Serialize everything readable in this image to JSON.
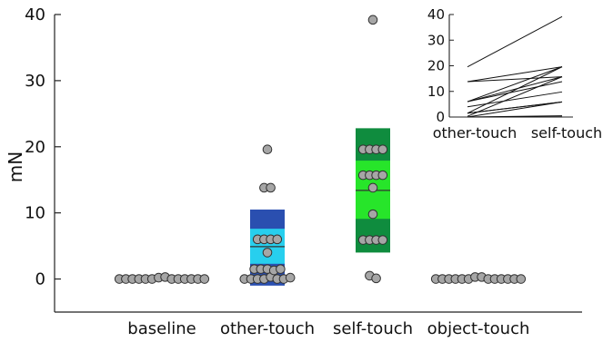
{
  "chart_data": [
    {
      "type": "box-scatter",
      "ylabel": "mN",
      "ylim": [
        -5,
        40
      ],
      "yticks": [
        0,
        10,
        20,
        30,
        40
      ],
      "categories": [
        "baseline",
        "other-touch",
        "self-touch",
        "object-touch"
      ],
      "colors": {
        "other-touch": {
          "outer": "#2a4fb0",
          "inner": "#27cfee",
          "median": "#333333"
        },
        "self-touch": {
          "outer": "#0f8c3e",
          "inner": "#27e52a",
          "median": "#333333"
        },
        "points": "#a6a6a6",
        "point_edge": "#333333"
      },
      "boxes": [
        {
          "category": "other-touch",
          "outer": [
            -1,
            10.5
          ],
          "inner": [
            2.3,
            7.6
          ],
          "median": 4.9
        },
        {
          "category": "self-touch",
          "outer": [
            4,
            22.8
          ],
          "inner": [
            9.1,
            17.9
          ],
          "median": 13.4
        }
      ],
      "points": [
        {
          "category": "baseline",
          "values": [
            0,
            0,
            0,
            0,
            0,
            0,
            0.2,
            0.3,
            0,
            0,
            0,
            0,
            0,
            0
          ]
        },
        {
          "category": "other-touch",
          "values": [
            0,
            0,
            0,
            0,
            0.3,
            0,
            0,
            0.2,
            1.5,
            1.5,
            1.5,
            1.3,
            1.5,
            4,
            6,
            6,
            6,
            6,
            13.8,
            13.8,
            19.6
          ]
        },
        {
          "category": "self-touch",
          "values": [
            19.6,
            19.6,
            19.6,
            19.6,
            15.7,
            15.7,
            15.7,
            15.7,
            13.8,
            9.8,
            5.9,
            5.9,
            5.9,
            5.9,
            0.5,
            0.1,
            39.2
          ]
        },
        {
          "category": "object-touch",
          "values": [
            0,
            0,
            0,
            0,
            0,
            0,
            0.3,
            0.3,
            0,
            0,
            0,
            0,
            0,
            0
          ]
        }
      ]
    },
    {
      "type": "line",
      "inset": true,
      "categories": [
        "other-touch",
        "self-touch"
      ],
      "ylim": [
        0,
        40
      ],
      "yticks": [
        0,
        10,
        20,
        30,
        40
      ],
      "pairs": [
        [
          19.6,
          39.2
        ],
        [
          13.8,
          19.6
        ],
        [
          13.8,
          15.7
        ],
        [
          6,
          19.6
        ],
        [
          6,
          15.7
        ],
        [
          6,
          13.8
        ],
        [
          4,
          9.8
        ],
        [
          1.5,
          5.9
        ],
        [
          1.5,
          5.9
        ],
        [
          1.5,
          19.6
        ],
        [
          0.3,
          15.7
        ],
        [
          0,
          5.9
        ],
        [
          0,
          0.5
        ],
        [
          0,
          0.1
        ]
      ]
    }
  ]
}
